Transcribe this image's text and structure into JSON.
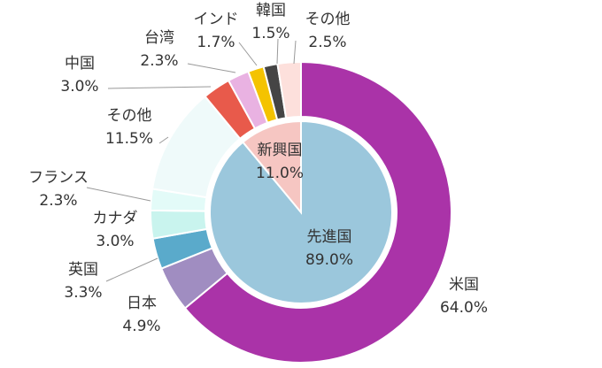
{
  "chart_data": [
    {
      "type": "pie",
      "categories": [
        "先進国",
        "新興国"
      ],
      "values": [
        89.0,
        11.0
      ],
      "value_labels": [
        "89.0%",
        "11.0%"
      ],
      "colors": [
        "#9bc7dc",
        "#f6c6c2"
      ]
    },
    {
      "type": "donut",
      "categories": [
        "米国",
        "日本",
        "英国",
        "カナダ",
        "フランス",
        "その他",
        "中国",
        "台湾",
        "インド",
        "韓国",
        "その他"
      ],
      "values": [
        64.0,
        4.9,
        3.3,
        3.0,
        2.3,
        11.5,
        3.0,
        2.3,
        1.7,
        1.5,
        2.5
      ],
      "value_labels": [
        "64.0%",
        "4.9%",
        "3.3%",
        "3.0%",
        "2.3%",
        "11.5%",
        "3.0%",
        "2.3%",
        "1.7%",
        "1.5%",
        "2.5%"
      ],
      "colors": [
        "#aa33a8",
        "#a08dc1",
        "#5aaacb",
        "#c9f4ee",
        "#e3fbf8",
        "#effafa",
        "#e85a4b",
        "#e9b2e2",
        "#f4c300",
        "#454545",
        "#fde0dc"
      ]
    }
  ]
}
